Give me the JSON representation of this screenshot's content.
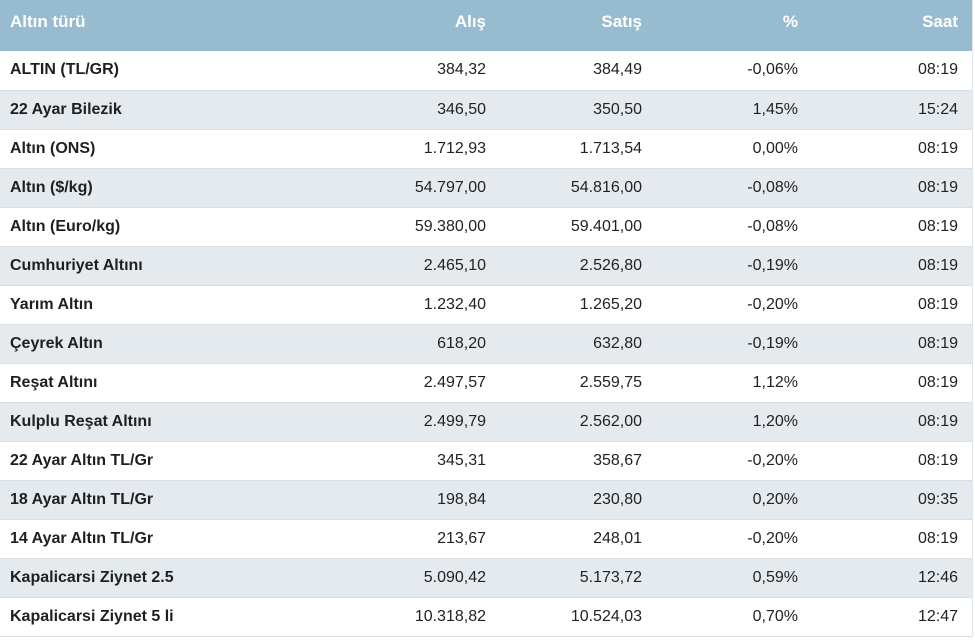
{
  "header": {
    "name": "Altın türü",
    "buy": "Alış",
    "sell": "Satış",
    "percent": "%",
    "time": "Saat"
  },
  "colors": {
    "header_bg": "#98bccf",
    "row_alt_bg": "#e5eaee"
  },
  "rows": [
    {
      "name": "ALTIN (TL/GR)",
      "buy": "384,32",
      "sell": "384,49",
      "percent": "-0,06%",
      "time": "08:19"
    },
    {
      "name": "22 Ayar Bilezik",
      "buy": "346,50",
      "sell": "350,50",
      "percent": "1,45%",
      "time": "15:24"
    },
    {
      "name": "Altın (ONS)",
      "buy": "1.712,93",
      "sell": "1.713,54",
      "percent": "0,00%",
      "time": "08:19"
    },
    {
      "name": "Altın ($/kg)",
      "buy": "54.797,00",
      "sell": "54.816,00",
      "percent": "-0,08%",
      "time": "08:19"
    },
    {
      "name": "Altın (Euro/kg)",
      "buy": "59.380,00",
      "sell": "59.401,00",
      "percent": "-0,08%",
      "time": "08:19"
    },
    {
      "name": "Cumhuriyet Altını",
      "buy": "2.465,10",
      "sell": "2.526,80",
      "percent": "-0,19%",
      "time": "08:19"
    },
    {
      "name": "Yarım Altın",
      "buy": "1.232,40",
      "sell": "1.265,20",
      "percent": "-0,20%",
      "time": "08:19"
    },
    {
      "name": "Çeyrek Altın",
      "buy": "618,20",
      "sell": "632,80",
      "percent": "-0,19%",
      "time": "08:19"
    },
    {
      "name": "Reşat Altını",
      "buy": "2.497,57",
      "sell": "2.559,75",
      "percent": "1,12%",
      "time": "08:19"
    },
    {
      "name": "Kulplu Reşat Altını",
      "buy": "2.499,79",
      "sell": "2.562,00",
      "percent": "1,20%",
      "time": "08:19"
    },
    {
      "name": "22 Ayar Altın TL/Gr",
      "buy": "345,31",
      "sell": "358,67",
      "percent": "-0,20%",
      "time": "08:19"
    },
    {
      "name": "18 Ayar Altın TL/Gr",
      "buy": "198,84",
      "sell": "230,80",
      "percent": "0,20%",
      "time": "09:35"
    },
    {
      "name": "14 Ayar Altın TL/Gr",
      "buy": "213,67",
      "sell": "248,01",
      "percent": "-0,20%",
      "time": "08:19"
    },
    {
      "name": "Kapalicarsi Ziynet 2.5",
      "buy": "5.090,42",
      "sell": "5.173,72",
      "percent": "0,59%",
      "time": "12:46"
    },
    {
      "name": "Kapalicarsi Ziynet 5 li",
      "buy": "10.318,82",
      "sell": "10.524,03",
      "percent": "0,70%",
      "time": "12:47"
    }
  ]
}
